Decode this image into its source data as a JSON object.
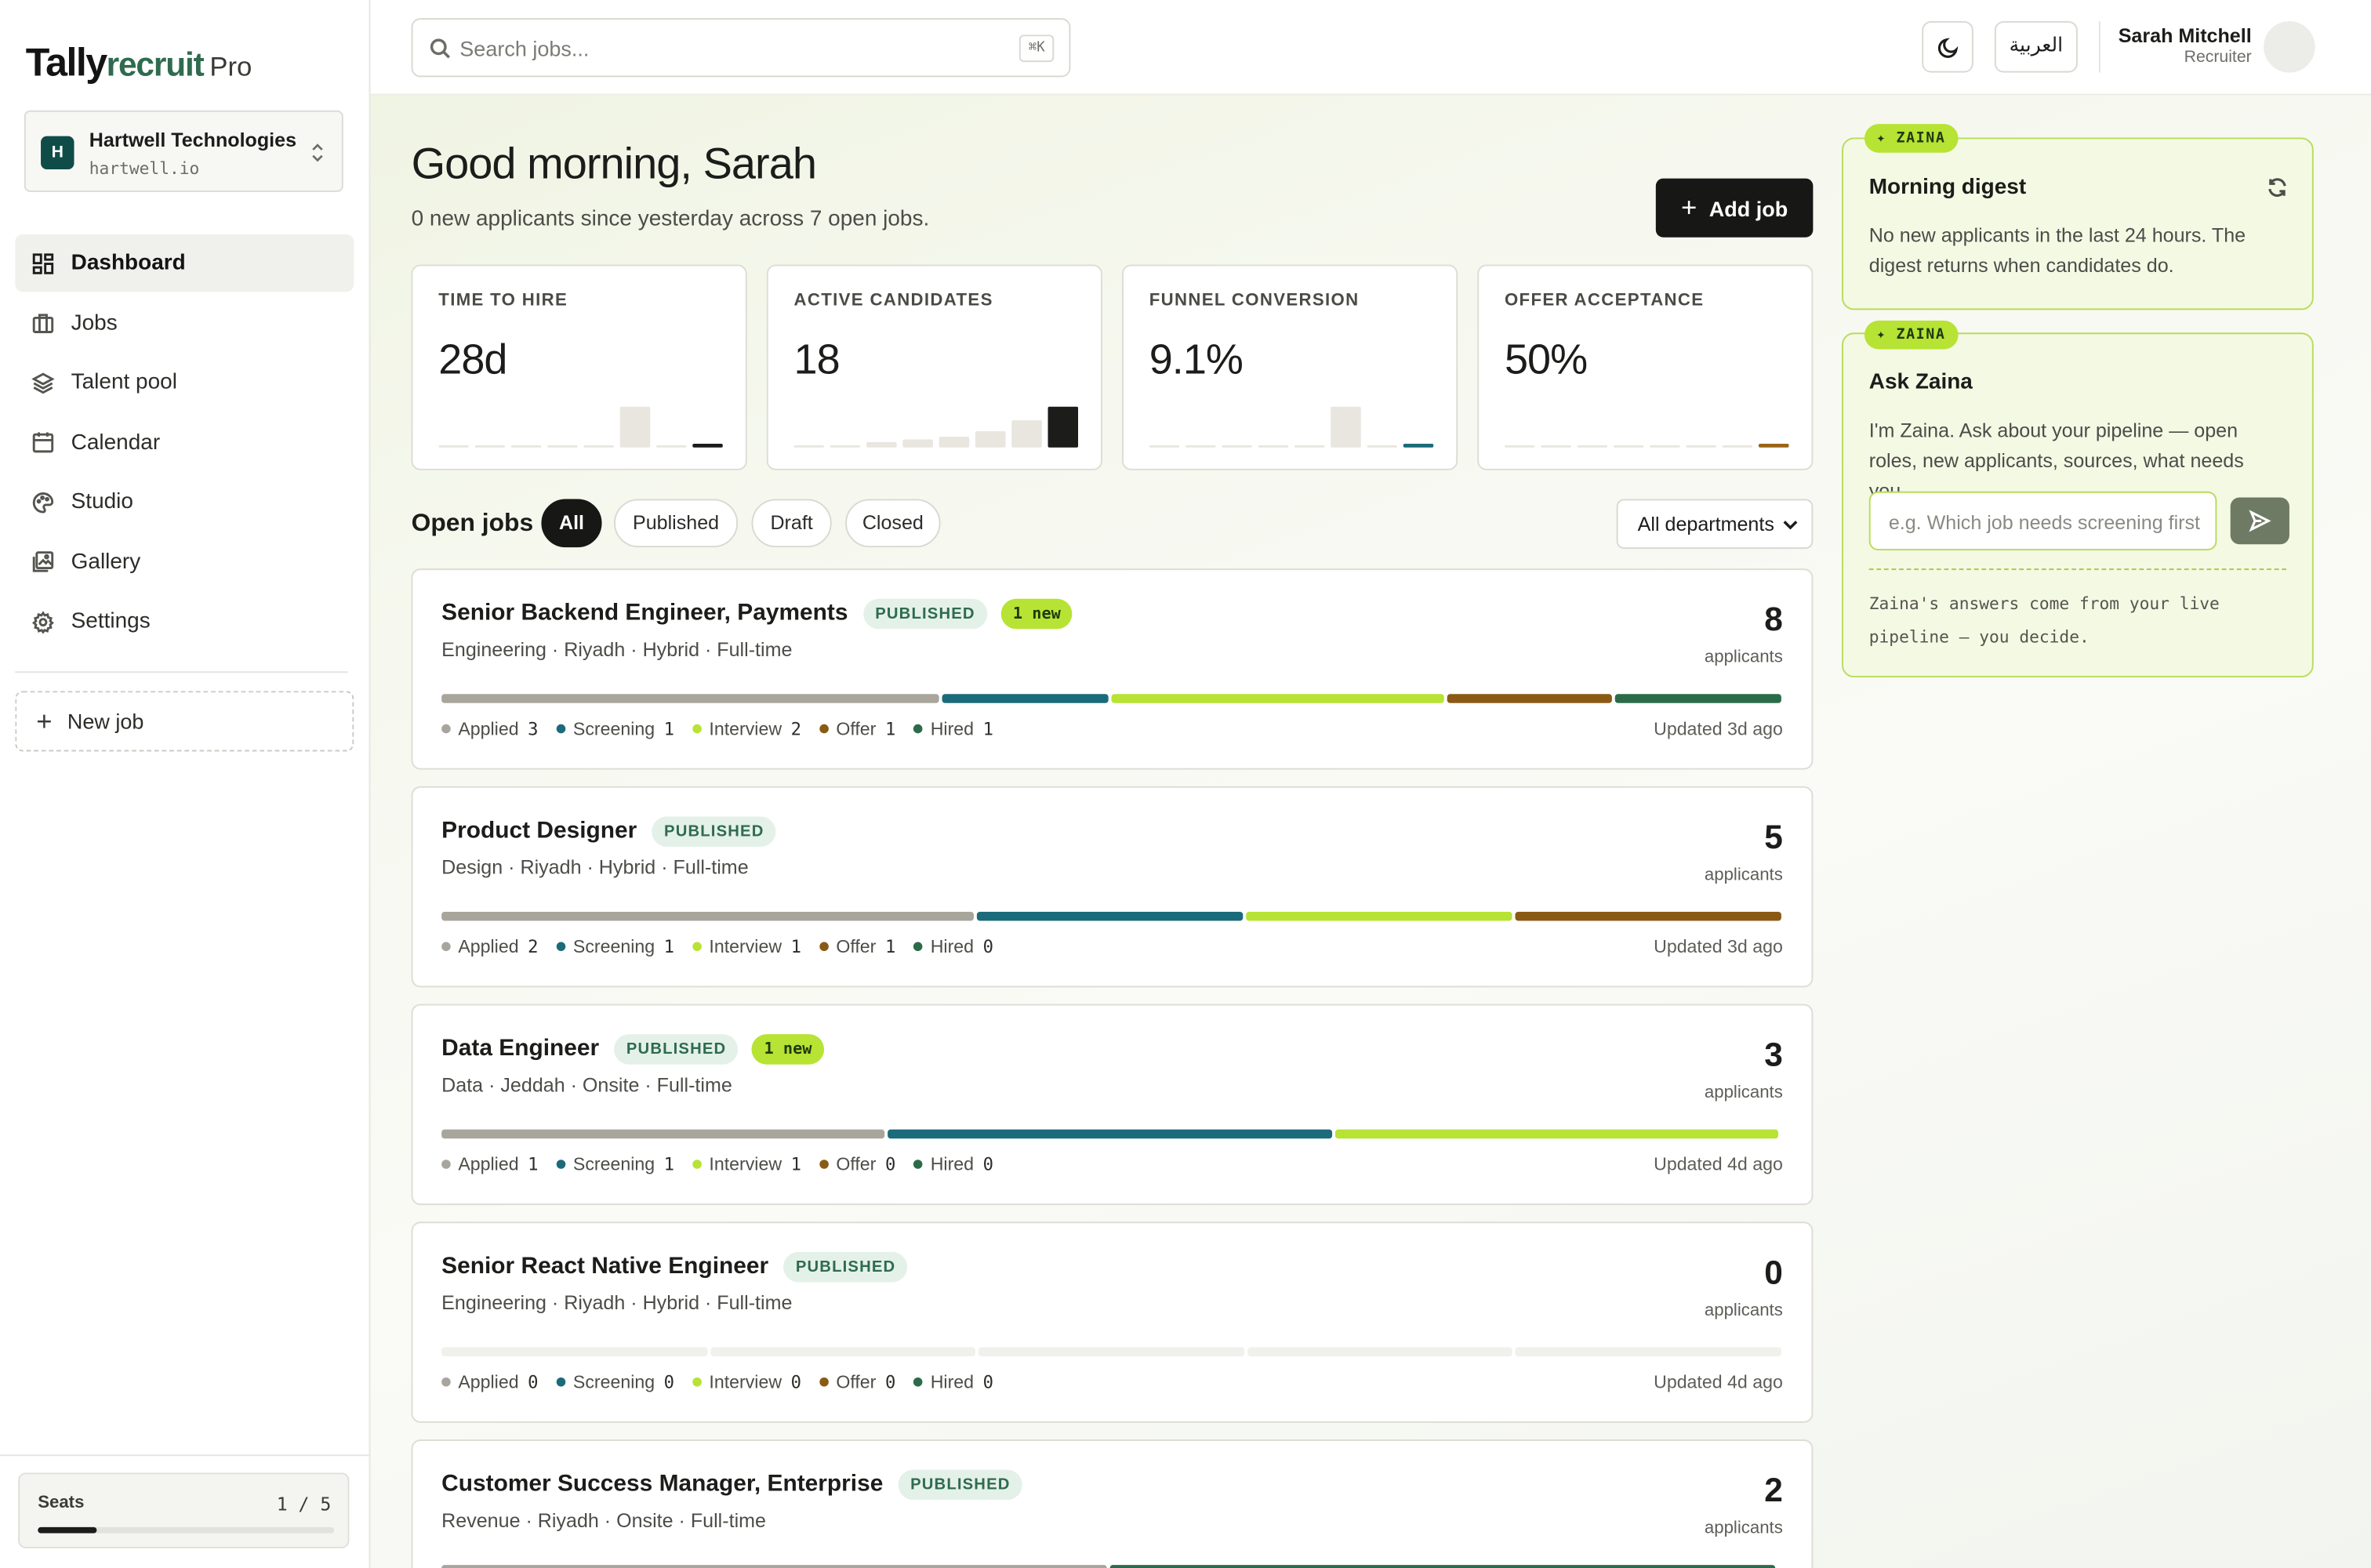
{
  "brand": {
    "part1": "Tally",
    "part2": "recruit",
    "tier": "Pro"
  },
  "org": {
    "initial": "H",
    "name": "Hartwell Technologies",
    "domain": "hartwell.io"
  },
  "nav": [
    {
      "label": "Dashboard",
      "icon": "grid-icon",
      "active": true
    },
    {
      "label": "Jobs",
      "icon": "briefcase-icon"
    },
    {
      "label": "Talent pool",
      "icon": "layers-icon"
    },
    {
      "label": "Calendar",
      "icon": "calendar-icon"
    },
    {
      "label": "Studio",
      "icon": "palette-icon"
    },
    {
      "label": "Gallery",
      "icon": "image-icon"
    },
    {
      "label": "Settings",
      "icon": "gear-icon"
    }
  ],
  "new_job_label": "New job",
  "seats": {
    "label": "Seats",
    "value": "1 / 5",
    "used": 1,
    "total": 5
  },
  "search": {
    "placeholder": "Search jobs...",
    "shortcut": "⌘K"
  },
  "lang_button": "العربية",
  "user": {
    "name": "Sarah Mitchell",
    "role": "Recruiter"
  },
  "greeting": "Good morning, Sarah",
  "subtitle": "0 new applicants since yesterday across 7 open jobs.",
  "add_job_label": "Add job",
  "kpis": [
    {
      "label": "TIME TO HIRE",
      "value": "28d",
      "bars": [
        0,
        0,
        0,
        0,
        0,
        28,
        0,
        0
      ],
      "accent": "#1c1c1a",
      "highlight": 5
    },
    {
      "label": "ACTIVE CANDIDATES",
      "value": "18",
      "bars": [
        0,
        0,
        2,
        3,
        4,
        6,
        10,
        15
      ],
      "accent": "#1c1c1a",
      "highlight": 7
    },
    {
      "label": "FUNNEL CONVERSION",
      "value": "9.1%",
      "bars": [
        0,
        0,
        0,
        0,
        0,
        30,
        0,
        0
      ],
      "accent": "#1b6b7a",
      "highlight": 5
    },
    {
      "label": "OFFER ACCEPTANCE",
      "value": "50%",
      "bars": [
        0,
        0,
        0,
        0,
        0,
        0,
        0,
        0
      ],
      "accent": "#9a6418",
      "highlight": -1
    }
  ],
  "open_jobs": {
    "title": "Open jobs",
    "filters": [
      "All",
      "Published",
      "Draft",
      "Closed"
    ],
    "active_filter": "All",
    "department": "All departments"
  },
  "stage_colors": {
    "Applied": "#a8a59c",
    "Screening": "#1b6b7a",
    "Interview": "#b7e334",
    "Offer": "#8a5a14",
    "Hired": "#2c6b4a"
  },
  "jobs": [
    {
      "title": "Senior Backend Engineer, Payments",
      "status": "PUBLISHED",
      "new": "1 new",
      "meta": "Engineering · Riyadh · Hybrid · Full-time",
      "count": "8",
      "count_label": "applicants",
      "stages": {
        "Applied": 3,
        "Screening": 1,
        "Interview": 2,
        "Offer": 1,
        "Hired": 1
      },
      "updated": "Updated 3d ago"
    },
    {
      "title": "Product Designer",
      "status": "PUBLISHED",
      "new": "",
      "meta": "Design · Riyadh · Hybrid · Full-time",
      "count": "5",
      "count_label": "applicants",
      "stages": {
        "Applied": 2,
        "Screening": 1,
        "Interview": 1,
        "Offer": 1,
        "Hired": 0
      },
      "updated": "Updated 3d ago"
    },
    {
      "title": "Data Engineer",
      "status": "PUBLISHED",
      "new": "1 new",
      "meta": "Data · Jeddah · Onsite · Full-time",
      "count": "3",
      "count_label": "applicants",
      "stages": {
        "Applied": 1,
        "Screening": 1,
        "Interview": 1,
        "Offer": 0,
        "Hired": 0
      },
      "updated": "Updated 4d ago"
    },
    {
      "title": "Senior React Native Engineer",
      "status": "PUBLISHED",
      "new": "",
      "meta": "Engineering · Riyadh · Hybrid · Full-time",
      "count": "0",
      "count_label": "applicants",
      "stages": {
        "Applied": 0,
        "Screening": 0,
        "Interview": 0,
        "Offer": 0,
        "Hired": 0
      },
      "updated": "Updated 4d ago"
    },
    {
      "title": "Customer Success Manager, Enterprise",
      "status": "PUBLISHED",
      "new": "",
      "meta": "Revenue · Riyadh · Onsite · Full-time",
      "count": "2",
      "count_label": "applicants",
      "stages": {
        "Applied": 1,
        "Screening": 0,
        "Interview": 0,
        "Offer": 0,
        "Hired": 1
      },
      "updated": ""
    }
  ],
  "digest": {
    "tag": "✦ ZAINA",
    "title": "Morning digest",
    "text": "No new applicants in the last 24 hours. The digest returns when candidates do."
  },
  "ask": {
    "tag": "✦ ZAINA",
    "title": "Ask Zaina",
    "text": "I'm Zaina. Ask about your pipeline — open roles, new applicants, sources, what needs you.",
    "placeholder": "e.g. Which job needs screening first?",
    "note": "Zaina's answers come from your live pipeline — you decide."
  }
}
